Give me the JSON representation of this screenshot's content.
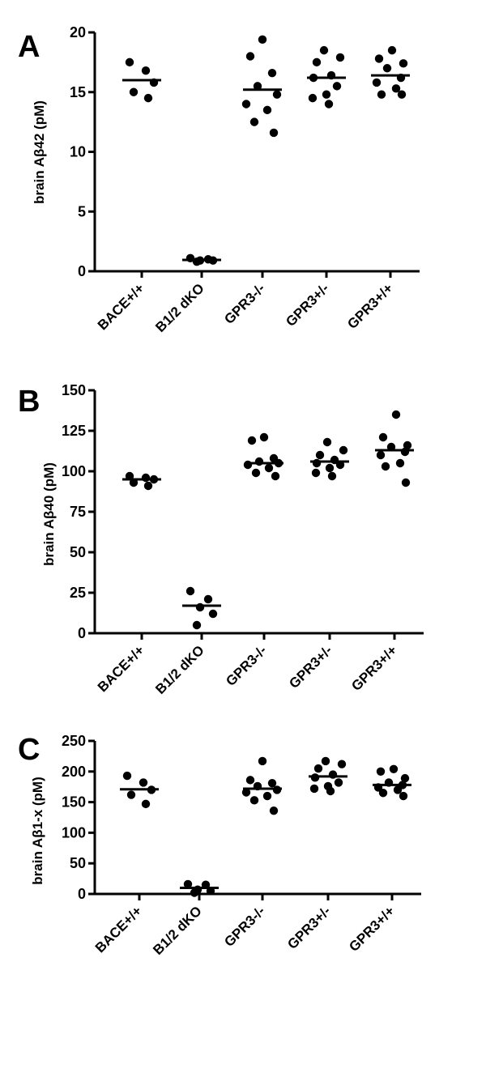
{
  "chart_data": [
    {
      "type": "scatter",
      "panel_label": "A",
      "ylabel": "brain Aβ42 (pM)",
      "ylim": [
        0,
        20
      ],
      "yticks": [
        0,
        5,
        10,
        15,
        20
      ],
      "categories": [
        "BACE+/+",
        "B1/2 dKO",
        "GPR3-/-",
        "GPR3+/-",
        "GPR3+/+"
      ],
      "points": [
        [
          17.5,
          16.8,
          15.8,
          15.0,
          14.5
        ],
        [
          1.1,
          1.0,
          0.9,
          0.9,
          0.8
        ],
        [
          19.4,
          18.0,
          16.6,
          15.5,
          14.8,
          14.0,
          13.5,
          12.5,
          11.6
        ],
        [
          18.5,
          17.9,
          17.5,
          16.4,
          16.2,
          15.5,
          14.8,
          14.5,
          14.0
        ],
        [
          18.5,
          17.8,
          17.4,
          17.0,
          16.2,
          15.8,
          15.3,
          14.8,
          14.8
        ]
      ],
      "means": [
        16.0,
        0.95,
        15.2,
        16.2,
        16.4
      ],
      "grid": false,
      "legend": "none"
    },
    {
      "type": "scatter",
      "panel_label": "B",
      "ylabel": "brain Aβ40 (pM)",
      "ylim": [
        0,
        150
      ],
      "yticks": [
        0,
        25,
        50,
        75,
        100,
        125,
        150
      ],
      "categories": [
        "BACE+/+",
        "B1/2 dKO",
        "GPR3-/-",
        "GPR3+/-",
        "GPR3+/+"
      ],
      "points": [
        [
          97,
          96,
          95,
          93,
          91
        ],
        [
          26,
          21,
          16,
          12,
          5
        ],
        [
          121,
          119,
          108,
          106,
          105,
          104,
          102,
          99,
          97
        ],
        [
          118,
          113,
          110,
          107,
          105,
          104,
          102,
          99,
          97
        ],
        [
          135,
          121,
          116,
          115,
          112,
          110,
          105,
          103,
          93
        ]
      ],
      "means": [
        95,
        17,
        105,
        106,
        113
      ],
      "grid": false,
      "legend": "none"
    },
    {
      "type": "scatter",
      "panel_label": "C",
      "ylabel": "brain Aβ1-x (pM)",
      "ylim": [
        0,
        250
      ],
      "yticks": [
        0,
        50,
        100,
        150,
        200,
        250
      ],
      "categories": [
        "BACE+/+",
        "B1/2 dKO",
        "GPR3-/-",
        "GPR3+/-",
        "GPR3+/+"
      ],
      "points": [
        [
          193,
          182,
          170,
          162,
          147
        ],
        [
          16,
          15,
          7,
          5,
          2
        ],
        [
          217,
          186,
          181,
          176,
          170,
          166,
          160,
          153,
          136
        ],
        [
          217,
          212,
          205,
          195,
          190,
          182,
          176,
          172,
          168
        ],
        [
          204,
          200,
          189,
          182,
          178,
          174,
          170,
          165,
          160
        ]
      ],
      "means": [
        171,
        10,
        172,
        192,
        178
      ],
      "grid": false,
      "legend": "none"
    }
  ]
}
